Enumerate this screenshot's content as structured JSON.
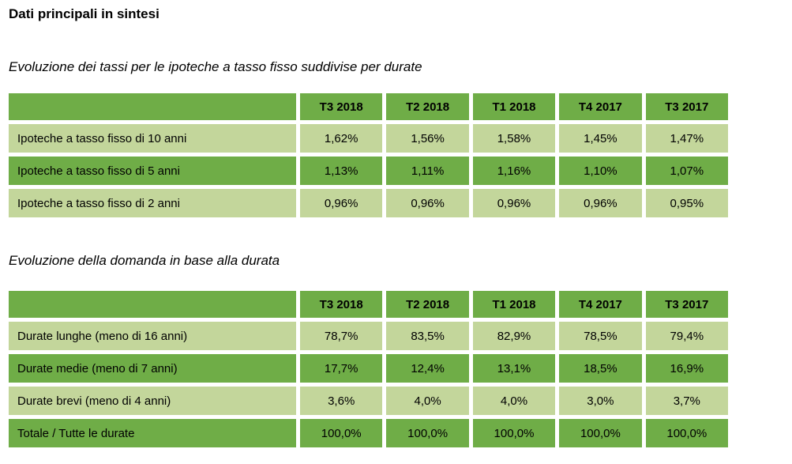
{
  "page": {
    "title": "Dati principali in sintesi"
  },
  "colors": {
    "header_green": "#6fad47",
    "row_dark_green": "#6fad47",
    "row_light_green": "#c3d69b",
    "text": "#000000"
  },
  "tables": [
    {
      "subtitle": "Evoluzione dei tassi per le ipoteche a tasso fisso suddivise per durate",
      "columns": [
        "T3 2018",
        "T2 2018",
        "T1 2018",
        "T4 2017",
        "T3 2017"
      ],
      "rows": [
        {
          "label": "Ipoteche a tasso fisso di 10 anni",
          "shade": "light",
          "values": [
            "1,62%",
            "1,56%",
            "1,58%",
            "1,45%",
            "1,47%"
          ]
        },
        {
          "label": "Ipoteche a tasso fisso di 5 anni",
          "shade": "dark",
          "values": [
            "1,13%",
            "1,11%",
            "1,16%",
            "1,10%",
            "1,07%"
          ]
        },
        {
          "label": "Ipoteche a tasso fisso di 2 anni",
          "shade": "light",
          "values": [
            "0,96%",
            "0,96%",
            "0,96%",
            "0,96%",
            "0,95%"
          ]
        }
      ]
    },
    {
      "subtitle": "Evoluzione della domanda in base alla durata",
      "columns": [
        "T3 2018",
        "T2 2018",
        "T1 2018",
        "T4 2017",
        "T3 2017"
      ],
      "rows": [
        {
          "label": "Durate lunghe (meno di 16 anni)",
          "shade": "light",
          "values": [
            "78,7%",
            "83,5%",
            "82,9%",
            "78,5%",
            "79,4%"
          ]
        },
        {
          "label": "Durate medie (meno di 7 anni)",
          "shade": "dark",
          "values": [
            "17,7%",
            "12,4%",
            "13,1%",
            "18,5%",
            "16,9%"
          ]
        },
        {
          "label": "Durate brevi (meno di 4 anni)",
          "shade": "light",
          "values": [
            "3,6%",
            "4,0%",
            "4,0%",
            "3,0%",
            "3,7%"
          ]
        },
        {
          "label": "Totale / Tutte le durate",
          "shade": "dark",
          "values": [
            "100,0%",
            "100,0%",
            "100,0%",
            "100,0%",
            "100,0%"
          ]
        }
      ]
    }
  ],
  "chart_data": [
    {
      "type": "table",
      "title": "Evoluzione dei tassi per le ipoteche a tasso fisso suddivise per durate",
      "categories": [
        "T3 2018",
        "T2 2018",
        "T1 2018",
        "T4 2017",
        "T3 2017"
      ],
      "series": [
        {
          "name": "Ipoteche a tasso fisso di 10 anni",
          "values": [
            1.62,
            1.56,
            1.58,
            1.45,
            1.47
          ]
        },
        {
          "name": "Ipoteche a tasso fisso di 5 anni",
          "values": [
            1.13,
            1.11,
            1.16,
            1.1,
            1.07
          ]
        },
        {
          "name": "Ipoteche a tasso fisso di 2 anni",
          "values": [
            0.96,
            0.96,
            0.96,
            0.96,
            0.95
          ]
        }
      ],
      "unit": "%"
    },
    {
      "type": "table",
      "title": "Evoluzione della domanda in base alla durata",
      "categories": [
        "T3 2018",
        "T2 2018",
        "T1 2018",
        "T4 2017",
        "T3 2017"
      ],
      "series": [
        {
          "name": "Durate lunghe (meno di 16 anni)",
          "values": [
            78.7,
            83.5,
            82.9,
            78.5,
            79.4
          ]
        },
        {
          "name": "Durate medie (meno di 7 anni)",
          "values": [
            17.7,
            12.4,
            13.1,
            18.5,
            16.9
          ]
        },
        {
          "name": "Durate brevi (meno di 4 anni)",
          "values": [
            3.6,
            4.0,
            4.0,
            3.0,
            3.7
          ]
        },
        {
          "name": "Totale / Tutte le durate",
          "values": [
            100.0,
            100.0,
            100.0,
            100.0,
            100.0
          ]
        }
      ],
      "unit": "%"
    }
  ]
}
